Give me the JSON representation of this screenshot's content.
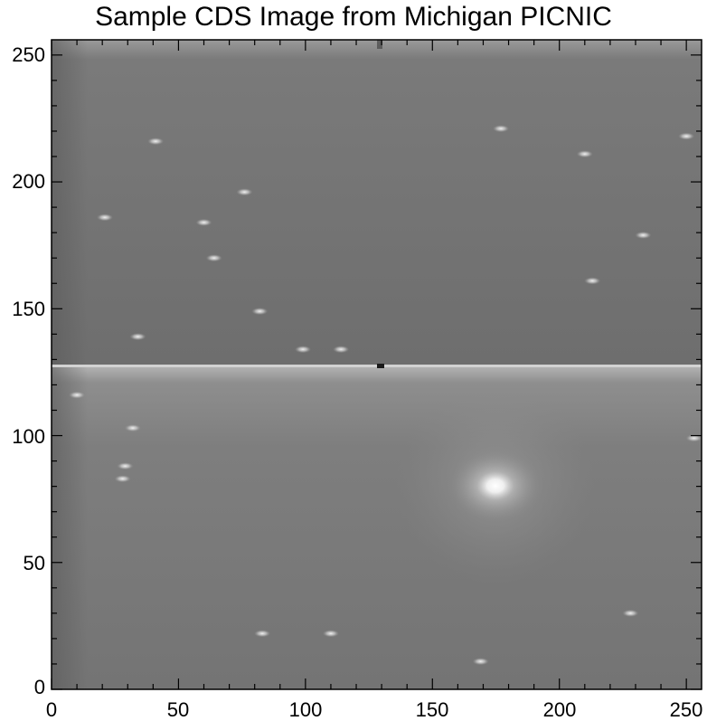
{
  "title": "Sample CDS Image from Michigan PICNIC",
  "axes": {
    "xlim": [
      0,
      256
    ],
    "ylim": [
      0,
      256
    ],
    "x_tick_labels": [
      "0",
      "50",
      "100",
      "150",
      "200",
      "250"
    ],
    "y_tick_labels": [
      "0",
      "50",
      "100",
      "150",
      "200",
      "250"
    ],
    "x_ticks": [
      0,
      50,
      100,
      150,
      200,
      250
    ],
    "y_ticks": [
      0,
      50,
      100,
      150,
      200,
      250
    ]
  },
  "image": {
    "colormap": "grayscale",
    "boundary_row": 128,
    "bright_source": {
      "x": 175,
      "y": 80
    },
    "hot_pixels": [
      {
        "x": 32,
        "y": 103
      },
      {
        "x": 29,
        "y": 88
      },
      {
        "x": 28,
        "y": 83
      },
      {
        "x": 21,
        "y": 186
      },
      {
        "x": 41,
        "y": 216
      },
      {
        "x": 76,
        "y": 196
      },
      {
        "x": 64,
        "y": 170
      },
      {
        "x": 60,
        "y": 184
      },
      {
        "x": 82,
        "y": 149
      },
      {
        "x": 34,
        "y": 139
      },
      {
        "x": 114,
        "y": 134
      },
      {
        "x": 99,
        "y": 134
      },
      {
        "x": 177,
        "y": 221
      },
      {
        "x": 210,
        "y": 211
      },
      {
        "x": 233,
        "y": 179
      },
      {
        "x": 213,
        "y": 161
      },
      {
        "x": 250,
        "y": 218
      },
      {
        "x": 83,
        "y": 22
      },
      {
        "x": 169,
        "y": 11
      },
      {
        "x": 228,
        "y": 30
      },
      {
        "x": 253,
        "y": 99
      },
      {
        "x": 10,
        "y": 116
      },
      {
        "x": 110,
        "y": 22
      }
    ]
  }
}
